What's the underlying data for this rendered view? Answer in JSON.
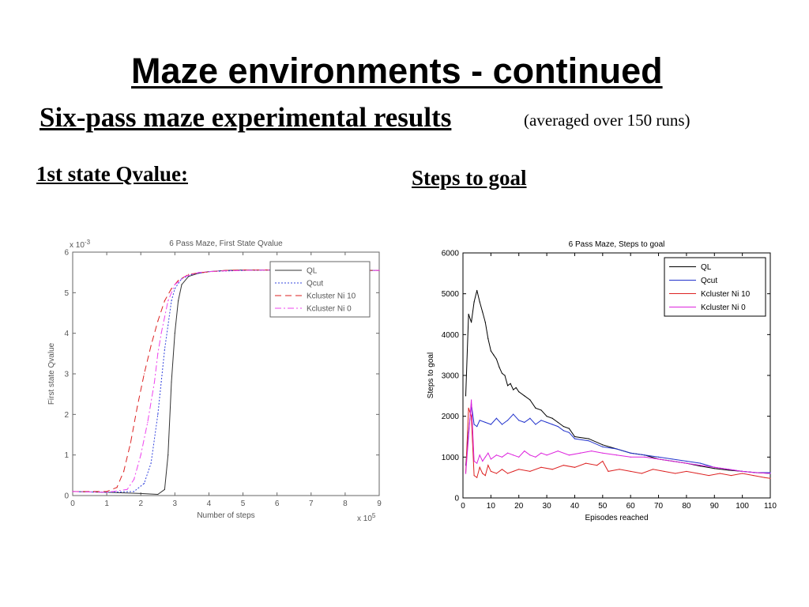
{
  "slide": {
    "title": "Maze environments - continued",
    "subtitle": "Six-pass maze experimental results",
    "note": "(averaged over 150 runs)",
    "left_label": "1st state Qvalue:",
    "right_label": "Steps to goal"
  },
  "chart_data": [
    {
      "type": "line",
      "title": "6 Pass Maze, First State Qvalue",
      "xlabel": "Number of steps",
      "ylabel": "First state Qvalue",
      "x_multiplier_label": "x 10",
      "x_multiplier_exp": "5",
      "y_multiplier_label": "x 10",
      "y_multiplier_exp": "-3",
      "xlim": [
        0,
        9
      ],
      "ylim": [
        0,
        6
      ],
      "xticks": [
        0,
        1,
        2,
        3,
        4,
        5,
        6,
        7,
        8,
        9
      ],
      "yticks": [
        0,
        1,
        2,
        3,
        4,
        5,
        6
      ],
      "grid": false,
      "legend_position": "top-right",
      "series": [
        {
          "name": "QL",
          "color": "#333333",
          "dash": "",
          "x": [
            0,
            1,
            2,
            2.5,
            2.7,
            2.8,
            2.9,
            3.0,
            3.1,
            3.2,
            3.4,
            3.7,
            4.0,
            4.5,
            5,
            6,
            7,
            8,
            9
          ],
          "y": [
            0.1,
            0.08,
            0.05,
            0.03,
            0.15,
            1.0,
            2.8,
            4.0,
            4.8,
            5.2,
            5.4,
            5.48,
            5.52,
            5.55,
            5.56,
            5.56,
            5.55,
            5.55,
            5.55
          ]
        },
        {
          "name": "Qcut",
          "color": "#3344dd",
          "dash": "2,2",
          "x": [
            0,
            1,
            1.8,
            2.1,
            2.3,
            2.5,
            2.6,
            2.7,
            2.8,
            2.9,
            3.0,
            3.2,
            3.5,
            4,
            5,
            6,
            7,
            8,
            9
          ],
          "y": [
            0.1,
            0.08,
            0.1,
            0.3,
            0.8,
            2.0,
            2.8,
            3.6,
            4.2,
            4.8,
            5.1,
            5.35,
            5.45,
            5.52,
            5.55,
            5.56,
            5.56,
            5.55,
            5.55
          ]
        },
        {
          "name": "Kcluster Ni 10",
          "color": "#dd2222",
          "dash": "8,5",
          "x": [
            0,
            1,
            1.3,
            1.5,
            1.7,
            1.9,
            2.1,
            2.3,
            2.5,
            2.7,
            2.9,
            3.1,
            3.4,
            3.8,
            4.5,
            5,
            6,
            7,
            8,
            9
          ],
          "y": [
            0.1,
            0.1,
            0.2,
            0.6,
            1.3,
            2.2,
            3.0,
            3.7,
            4.3,
            4.8,
            5.1,
            5.3,
            5.45,
            5.5,
            5.55,
            5.56,
            5.56,
            5.55,
            5.55,
            5.55
          ]
        },
        {
          "name": "Kcluster Ni 0",
          "color": "#ee44ee",
          "dash": "8,3,2,3",
          "x": [
            0,
            1,
            1.6,
            1.8,
            2.0,
            2.2,
            2.4,
            2.5,
            2.6,
            2.8,
            3.0,
            3.3,
            3.7,
            4.2,
            5,
            6,
            7,
            8,
            9
          ],
          "y": [
            0.1,
            0.08,
            0.15,
            0.4,
            1.0,
            1.8,
            2.8,
            3.5,
            4.0,
            4.8,
            5.2,
            5.4,
            5.5,
            5.53,
            5.55,
            5.56,
            5.55,
            5.55,
            5.55
          ]
        }
      ]
    },
    {
      "type": "line",
      "title": "6 Pass Maze, Steps to goal",
      "xlabel": "Episodes reached",
      "ylabel": "Steps to goal",
      "xlim": [
        0,
        110
      ],
      "ylim": [
        0,
        6000
      ],
      "xticks": [
        0,
        10,
        20,
        30,
        40,
        50,
        60,
        70,
        80,
        90,
        100,
        110
      ],
      "yticks": [
        0,
        1000,
        2000,
        3000,
        4000,
        5000,
        6000
      ],
      "grid": false,
      "legend_position": "top-right",
      "series": [
        {
          "name": "QL",
          "color": "#000000",
          "x": [
            1,
            2,
            3,
            4,
            5,
            6,
            7,
            8,
            9,
            10,
            11,
            12,
            13,
            14,
            15,
            16,
            17,
            18,
            19,
            20,
            22,
            24,
            26,
            28,
            30,
            32,
            34,
            36,
            38,
            40,
            45,
            50,
            55,
            60,
            65,
            70,
            75,
            80,
            85,
            90,
            95,
            100,
            105,
            110
          ],
          "y": [
            2500,
            4500,
            4300,
            4800,
            5080,
            4800,
            4550,
            4300,
            3900,
            3600,
            3500,
            3400,
            3200,
            3050,
            3000,
            2750,
            2800,
            2650,
            2700,
            2600,
            2500,
            2400,
            2200,
            2150,
            2000,
            1950,
            1850,
            1750,
            1700,
            1500,
            1450,
            1300,
            1200,
            1100,
            1050,
            950,
            900,
            850,
            780,
            720,
            680,
            650,
            620,
            600
          ]
        },
        {
          "name": "Qcut",
          "color": "#2233cc",
          "x": [
            1,
            2,
            3,
            4,
            5,
            6,
            8,
            10,
            12,
            14,
            16,
            18,
            20,
            22,
            24,
            26,
            28,
            30,
            32,
            34,
            36,
            38,
            40,
            45,
            50,
            55,
            60,
            65,
            70,
            75,
            80,
            85,
            90,
            95,
            100,
            105,
            110
          ],
          "y": [
            800,
            1600,
            2300,
            1800,
            1750,
            1900,
            1850,
            1800,
            1950,
            1800,
            1900,
            2050,
            1900,
            1850,
            1950,
            1800,
            1900,
            1850,
            1800,
            1750,
            1650,
            1600,
            1450,
            1400,
            1250,
            1200,
            1100,
            1050,
            1000,
            950,
            900,
            850,
            750,
            700,
            650,
            620,
            620
          ]
        },
        {
          "name": "Kcluster Ni 10",
          "color": "#dd2222",
          "x": [
            1,
            2,
            3,
            4,
            5,
            6,
            7,
            8,
            9,
            10,
            12,
            14,
            16,
            18,
            20,
            24,
            28,
            32,
            36,
            40,
            44,
            48,
            50,
            52,
            56,
            60,
            64,
            68,
            72,
            76,
            80,
            84,
            88,
            92,
            96,
            100,
            104,
            108,
            110
          ],
          "y": [
            600,
            2200,
            2000,
            550,
            500,
            750,
            600,
            550,
            800,
            650,
            600,
            700,
            600,
            650,
            700,
            650,
            750,
            700,
            800,
            750,
            850,
            800,
            900,
            650,
            700,
            650,
            600,
            700,
            650,
            600,
            650,
            600,
            550,
            600,
            550,
            600,
            550,
            500,
            480
          ]
        },
        {
          "name": "Kcluster Ni 0",
          "color": "#dd22dd",
          "x": [
            1,
            2,
            3,
            4,
            5,
            6,
            7,
            8,
            9,
            10,
            12,
            14,
            16,
            18,
            20,
            22,
            24,
            26,
            28,
            30,
            34,
            38,
            42,
            46,
            50,
            55,
            60,
            65,
            70,
            75,
            80,
            85,
            90,
            95,
            100,
            105,
            110
          ],
          "y": [
            600,
            1500,
            2400,
            900,
            850,
            1050,
            900,
            1000,
            1100,
            950,
            1050,
            1000,
            1100,
            1050,
            1000,
            1150,
            1050,
            1000,
            1100,
            1050,
            1150,
            1050,
            1100,
            1150,
            1100,
            1050,
            1000,
            1000,
            950,
            900,
            850,
            800,
            750,
            700,
            650,
            620,
            600
          ]
        }
      ]
    }
  ]
}
